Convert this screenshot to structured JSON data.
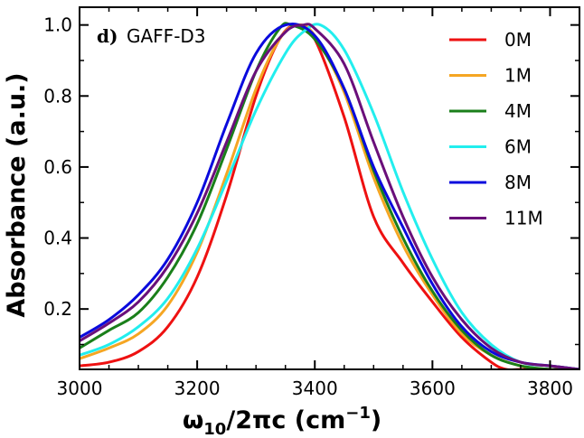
{
  "chart_data": {
    "type": "line",
    "panel_letter": "d)",
    "title": "GAFF-D3",
    "xlabel_main": "ω",
    "xlabel_sub": "10",
    "xlabel_rest": "/2πc (cm",
    "xlabel_sup": "−1",
    "xlabel_close": ")",
    "ylabel": "Absorbance (a.u.)",
    "xlim": [
      3000,
      3850
    ],
    "ylim": [
      0.03,
      1.05
    ],
    "xticks": [
      3000,
      3200,
      3400,
      3600,
      3800
    ],
    "xtick_labels": [
      "3000",
      "3200",
      "3400",
      "3600",
      "3800"
    ],
    "yticks": [
      0.2,
      0.4,
      0.6,
      0.8,
      1.0
    ],
    "ytick_labels": [
      "0.2",
      "0.4",
      "0.6",
      "0.8",
      "1.0"
    ],
    "legend_position": "top-right",
    "series": [
      {
        "name": "0M",
        "color": "#ee1111",
        "x": [
          3000,
          3050,
          3100,
          3150,
          3200,
          3250,
          3300,
          3340,
          3370,
          3400,
          3450,
          3500,
          3550,
          3600,
          3650,
          3700,
          3725,
          3750,
          3800,
          3850
        ],
        "y": [
          0.04,
          0.05,
          0.08,
          0.15,
          0.29,
          0.52,
          0.8,
          0.96,
          1.0,
          0.96,
          0.74,
          0.46,
          0.33,
          0.22,
          0.12,
          0.05,
          0.03,
          0.03,
          0.03,
          0.03
        ]
      },
      {
        "name": "1M",
        "color": "#f5a623",
        "x": [
          3000,
          3050,
          3100,
          3150,
          3200,
          3250,
          3300,
          3340,
          3370,
          3400,
          3450,
          3500,
          3550,
          3600,
          3650,
          3700,
          3750,
          3800,
          3850
        ],
        "y": [
          0.06,
          0.09,
          0.13,
          0.21,
          0.36,
          0.58,
          0.82,
          0.96,
          1.0,
          0.97,
          0.81,
          0.57,
          0.38,
          0.24,
          0.13,
          0.07,
          0.04,
          0.03,
          0.03
        ]
      },
      {
        "name": "4M",
        "color": "#1a7f1a",
        "x": [
          3000,
          3050,
          3100,
          3150,
          3200,
          3250,
          3300,
          3340,
          3360,
          3400,
          3450,
          3500,
          3550,
          3600,
          3650,
          3700,
          3750,
          3800,
          3850
        ],
        "y": [
          0.09,
          0.14,
          0.19,
          0.29,
          0.44,
          0.65,
          0.87,
          0.99,
          1.0,
          0.96,
          0.82,
          0.59,
          0.4,
          0.25,
          0.14,
          0.07,
          0.04,
          0.03,
          0.03
        ]
      },
      {
        "name": "6M",
        "color": "#22eeee",
        "x": [
          3000,
          3050,
          3100,
          3150,
          3200,
          3250,
          3300,
          3350,
          3380,
          3410,
          3450,
          3500,
          3550,
          3600,
          3650,
          3700,
          3750,
          3800,
          3850
        ],
        "y": [
          0.07,
          0.1,
          0.15,
          0.23,
          0.37,
          0.56,
          0.76,
          0.92,
          0.98,
          1.0,
          0.93,
          0.75,
          0.53,
          0.34,
          0.19,
          0.1,
          0.05,
          0.04,
          0.03
        ]
      },
      {
        "name": "8M",
        "color": "#0a0add",
        "x": [
          3000,
          3050,
          3100,
          3150,
          3200,
          3250,
          3300,
          3350,
          3400,
          3450,
          3500,
          3550,
          3600,
          3650,
          3700,
          3750,
          3800,
          3850
        ],
        "y": [
          0.12,
          0.17,
          0.24,
          0.34,
          0.5,
          0.72,
          0.92,
          1.0,
          0.97,
          0.82,
          0.6,
          0.43,
          0.27,
          0.15,
          0.08,
          0.05,
          0.04,
          0.03
        ]
      },
      {
        "name": "11M",
        "color": "#6a0f7a",
        "x": [
          3000,
          3050,
          3100,
          3150,
          3200,
          3250,
          3300,
          3350,
          3380,
          3400,
          3450,
          3500,
          3550,
          3600,
          3650,
          3700,
          3750,
          3800,
          3850
        ],
        "y": [
          0.11,
          0.16,
          0.22,
          0.32,
          0.47,
          0.67,
          0.87,
          0.98,
          1.0,
          0.99,
          0.89,
          0.67,
          0.46,
          0.29,
          0.17,
          0.09,
          0.05,
          0.04,
          0.03
        ]
      }
    ]
  }
}
